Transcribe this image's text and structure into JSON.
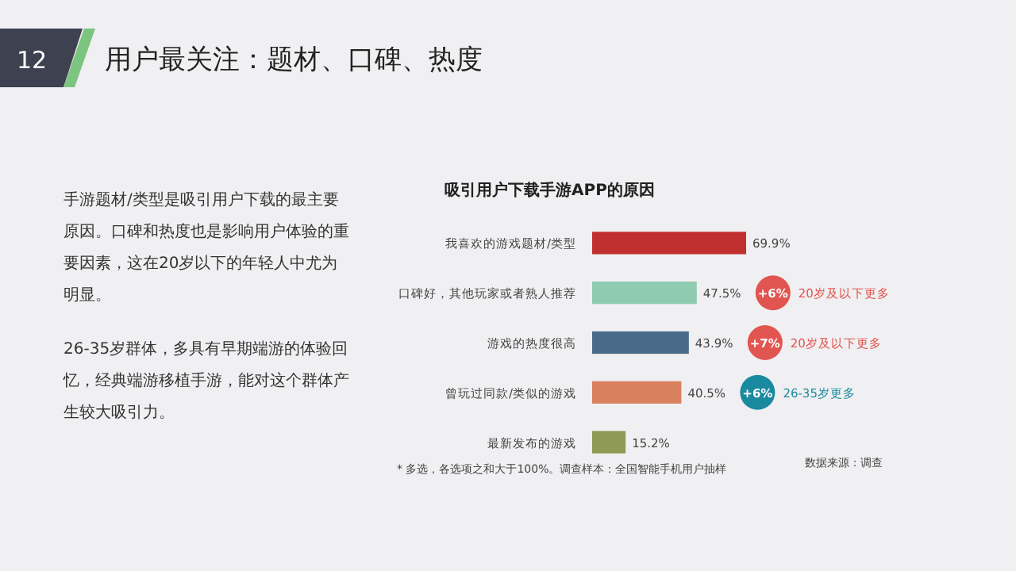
{
  "chart_data": {
    "type": "bar",
    "orientation": "horizontal",
    "title": "用户最关注：题材、口碑、热度",
    "subtitle": "吸引用户下载手游APP的原因",
    "categories": [
      "我喜欢的游戏题材/类型",
      "口碑好，其他玩家或者熟人推荐",
      "游戏的热度很高",
      "曾玩过同款/类似的游戏",
      "最新发布的游戏"
    ],
    "values": [
      69.9,
      47.5,
      43.9,
      40.5,
      15.2
    ],
    "colors": [
      "#c0302f",
      "#8fcbb0",
      "#4a6a8a",
      "#d9805f",
      "#8f9a55"
    ],
    "value_labels": [
      "69.9%",
      "47.5%",
      "43.9%",
      "40.5%",
      "15.2%"
    ],
    "annotations": [
      "12",
      "手游题材/类型是吸引用户下载的最主要原因。口碑和热度也是影响用户体验的重要因素，这在20岁以下的年轻人中尤为明显。",
      "26-35岁群体，多具有早期端游的体验回忆，经典端游移植手游，能对这个群体产生较大吸引力。",
      "+6%",
      "20岁及以下更多",
      "+7%",
      "20岁及以下更多",
      "+6%",
      "26-35岁更多",
      "* 多选，各选项之和大于100%。调查样本：全国智能手机用户抽样",
      "数据来源：调查"
    ]
  }
}
